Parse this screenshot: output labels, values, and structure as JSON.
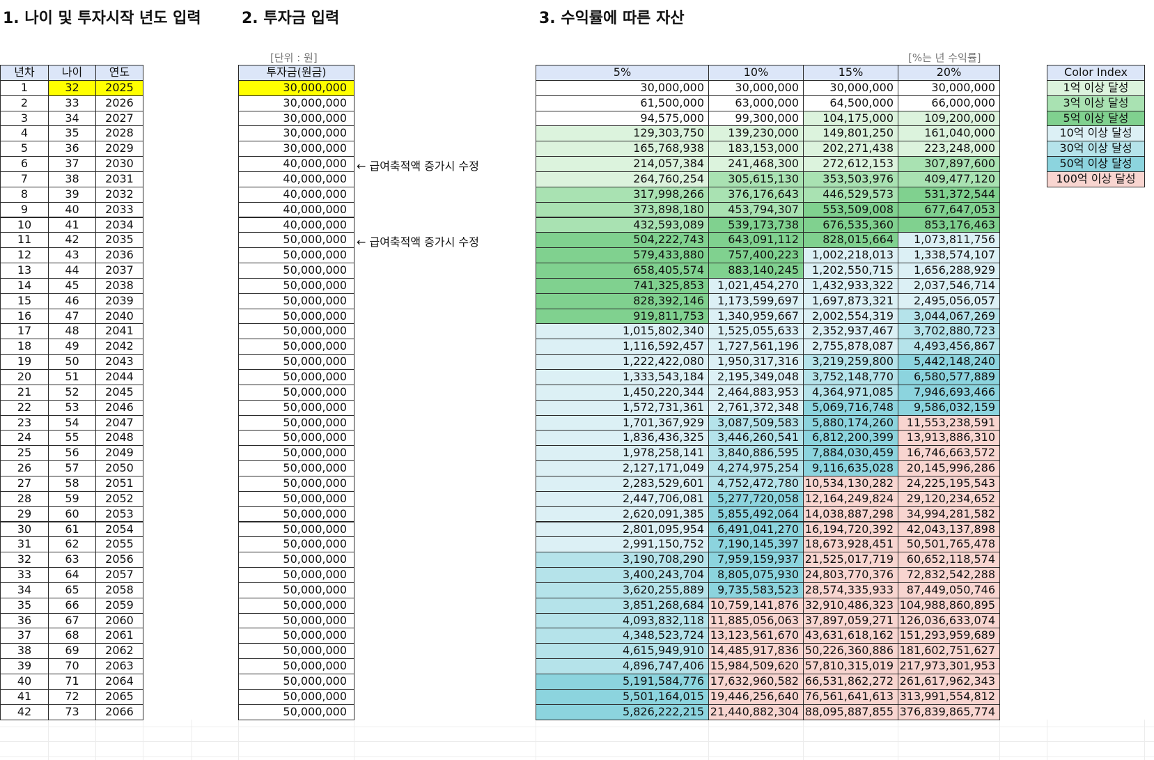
{
  "sections": {
    "s1": "1. 나이 및 투자시작 년도 입력",
    "s2": "2. 투자금 입력",
    "s3": "3. 수익률에 따른 자산"
  },
  "unit_note": "[단위 : 원]",
  "rate_note": "[%는 년 수익률]",
  "input_table": {
    "headers": [
      "년차",
      "나이",
      "연도"
    ],
    "rows": [
      [
        1,
        32,
        2025
      ],
      [
        2,
        33,
        2026
      ],
      [
        3,
        34,
        2027
      ],
      [
        4,
        35,
        2028
      ],
      [
        5,
        36,
        2029
      ],
      [
        6,
        37,
        2030
      ],
      [
        7,
        38,
        2031
      ],
      [
        8,
        39,
        2032
      ],
      [
        9,
        40,
        2033
      ],
      [
        10,
        41,
        2034
      ],
      [
        11,
        42,
        2035
      ],
      [
        12,
        43,
        2036
      ],
      [
        13,
        44,
        2037
      ],
      [
        14,
        45,
        2038
      ],
      [
        15,
        46,
        2039
      ],
      [
        16,
        47,
        2040
      ],
      [
        17,
        48,
        2041
      ],
      [
        18,
        49,
        2042
      ],
      [
        19,
        50,
        2043
      ],
      [
        20,
        51,
        2044
      ],
      [
        21,
        52,
        2045
      ],
      [
        22,
        53,
        2046
      ],
      [
        23,
        54,
        2047
      ],
      [
        24,
        55,
        2048
      ],
      [
        25,
        56,
        2049
      ],
      [
        26,
        57,
        2050
      ],
      [
        27,
        58,
        2051
      ],
      [
        28,
        59,
        2052
      ],
      [
        29,
        60,
        2053
      ],
      [
        30,
        61,
        2054
      ],
      [
        31,
        62,
        2055
      ],
      [
        32,
        63,
        2056
      ],
      [
        33,
        64,
        2057
      ],
      [
        34,
        65,
        2058
      ],
      [
        35,
        66,
        2059
      ],
      [
        36,
        67,
        2060
      ],
      [
        37,
        68,
        2061
      ],
      [
        38,
        69,
        2062
      ],
      [
        39,
        70,
        2063
      ],
      [
        40,
        71,
        2064
      ],
      [
        41,
        72,
        2065
      ],
      [
        42,
        73,
        2066
      ]
    ]
  },
  "investment_table": {
    "header": "투자금(원금)",
    "rows": [
      {
        "amount": "30,000,000"
      },
      {
        "amount": "30,000,000"
      },
      {
        "amount": "30,000,000"
      },
      {
        "amount": "30,000,000"
      },
      {
        "amount": "30,000,000"
      },
      {
        "amount": "40,000,000",
        "note": "← 급여축적액 증가시 수정"
      },
      {
        "amount": "40,000,000"
      },
      {
        "amount": "40,000,000"
      },
      {
        "amount": "40,000,000"
      },
      {
        "amount": "40,000,000"
      },
      {
        "amount": "50,000,000",
        "note": "← 급여축적액 증가시 수정"
      },
      {
        "amount": "50,000,000"
      },
      {
        "amount": "50,000,000"
      },
      {
        "amount": "50,000,000"
      },
      {
        "amount": "50,000,000"
      },
      {
        "amount": "50,000,000"
      },
      {
        "amount": "50,000,000"
      },
      {
        "amount": "50,000,000"
      },
      {
        "amount": "50,000,000"
      },
      {
        "amount": "50,000,000"
      },
      {
        "amount": "50,000,000"
      },
      {
        "amount": "50,000,000"
      },
      {
        "amount": "50,000,000"
      },
      {
        "amount": "50,000,000"
      },
      {
        "amount": "50,000,000"
      },
      {
        "amount": "50,000,000"
      },
      {
        "amount": "50,000,000"
      },
      {
        "amount": "50,000,000"
      },
      {
        "amount": "50,000,000"
      },
      {
        "amount": "50,000,000"
      },
      {
        "amount": "50,000,000"
      },
      {
        "amount": "50,000,000"
      },
      {
        "amount": "50,000,000"
      },
      {
        "amount": "50,000,000"
      },
      {
        "amount": "50,000,000"
      },
      {
        "amount": "50,000,000"
      },
      {
        "amount": "50,000,000"
      },
      {
        "amount": "50,000,000"
      },
      {
        "amount": "50,000,000"
      },
      {
        "amount": "50,000,000"
      },
      {
        "amount": "50,000,000"
      },
      {
        "amount": "50,000,000"
      }
    ]
  },
  "asset_table": {
    "headers": [
      "5%",
      "10%",
      "15%",
      "20%"
    ],
    "rows": [
      [
        "30,000,000",
        "30,000,000",
        "30,000,000",
        "30,000,000"
      ],
      [
        "61,500,000",
        "63,000,000",
        "64,500,000",
        "66,000,000"
      ],
      [
        "94,575,000",
        "99,300,000",
        "104,175,000",
        "109,200,000"
      ],
      [
        "129,303,750",
        "139,230,000",
        "149,801,250",
        "161,040,000"
      ],
      [
        "165,768,938",
        "183,153,000",
        "202,271,438",
        "223,248,000"
      ],
      [
        "214,057,384",
        "241,468,300",
        "272,612,153",
        "307,897,600"
      ],
      [
        "264,760,254",
        "305,615,130",
        "353,503,976",
        "409,477,120"
      ],
      [
        "317,998,266",
        "376,176,643",
        "446,529,573",
        "531,372,544"
      ],
      [
        "373,898,180",
        "453,794,307",
        "553,509,008",
        "677,647,053"
      ],
      [
        "432,593,089",
        "539,173,738",
        "676,535,360",
        "853,176,463"
      ],
      [
        "504,222,743",
        "643,091,112",
        "828,015,664",
        "1,073,811,756"
      ],
      [
        "579,433,880",
        "757,400,223",
        "1,002,218,013",
        "1,338,574,107"
      ],
      [
        "658,405,574",
        "883,140,245",
        "1,202,550,715",
        "1,656,288,929"
      ],
      [
        "741,325,853",
        "1,021,454,270",
        "1,432,933,322",
        "2,037,546,714"
      ],
      [
        "828,392,146",
        "1,173,599,697",
        "1,697,873,321",
        "2,495,056,057"
      ],
      [
        "919,811,753",
        "1,340,959,667",
        "2,002,554,319",
        "3,044,067,269"
      ],
      [
        "1,015,802,340",
        "1,525,055,633",
        "2,352,937,467",
        "3,702,880,723"
      ],
      [
        "1,116,592,457",
        "1,727,561,196",
        "2,755,878,087",
        "4,493,456,867"
      ],
      [
        "1,222,422,080",
        "1,950,317,316",
        "3,219,259,800",
        "5,442,148,240"
      ],
      [
        "1,333,543,184",
        "2,195,349,048",
        "3,752,148,770",
        "6,580,577,889"
      ],
      [
        "1,450,220,344",
        "2,464,883,953",
        "4,364,971,085",
        "7,946,693,466"
      ],
      [
        "1,572,731,361",
        "2,761,372,348",
        "5,069,716,748",
        "9,586,032,159"
      ],
      [
        "1,701,367,929",
        "3,087,509,583",
        "5,880,174,260",
        "11,553,238,591"
      ],
      [
        "1,836,436,325",
        "3,446,260,541",
        "6,812,200,399",
        "13,913,886,310"
      ],
      [
        "1,978,258,141",
        "3,840,886,595",
        "7,884,030,459",
        "16,746,663,572"
      ],
      [
        "2,127,171,049",
        "4,274,975,254",
        "9,116,635,028",
        "20,145,996,286"
      ],
      [
        "2,283,529,601",
        "4,752,472,780",
        "10,534,130,282",
        "24,225,195,543"
      ],
      [
        "2,447,706,081",
        "5,277,720,058",
        "12,164,249,824",
        "29,120,234,652"
      ],
      [
        "2,620,091,385",
        "5,855,492,064",
        "14,038,887,298",
        "34,994,281,582"
      ],
      [
        "2,801,095,954",
        "6,491,041,270",
        "16,194,720,392",
        "42,043,137,898"
      ],
      [
        "2,991,150,752",
        "7,190,145,397",
        "18,673,928,451",
        "50,501,765,478"
      ],
      [
        "3,190,708,290",
        "7,959,159,937",
        "21,525,017,719",
        "60,652,118,574"
      ],
      [
        "3,400,243,704",
        "8,805,075,930",
        "24,803,770,376",
        "72,832,542,288"
      ],
      [
        "3,620,255,889",
        "9,735,583,523",
        "28,574,335,933",
        "87,449,050,746"
      ],
      [
        "3,851,268,684",
        "10,759,141,876",
        "32,910,486,323",
        "104,988,860,895"
      ],
      [
        "4,093,832,118",
        "11,885,056,063",
        "37,897,059,271",
        "126,036,633,074"
      ],
      [
        "4,348,523,724",
        "13,123,561,670",
        "43,631,618,162",
        "151,293,959,689"
      ],
      [
        "4,615,949,910",
        "14,485,917,836",
        "50,226,360,886",
        "181,602,751,627"
      ],
      [
        "4,896,747,406",
        "15,984,509,620",
        "57,810,315,019",
        "217,973,301,953"
      ],
      [
        "5,191,584,776",
        "17,632,960,582",
        "66,531,862,272",
        "261,617,962,343"
      ],
      [
        "5,501,164,015",
        "19,446,256,640",
        "76,561,641,613",
        "313,991,554,812"
      ],
      [
        "5,826,222,215",
        "21,440,882,304",
        "88,095,887,855",
        "376,839,865,774"
      ]
    ]
  },
  "color_index": {
    "title": "Color Index",
    "items": [
      {
        "label": "1억 이상 달성",
        "color": "#dcf3dd",
        "min": 100000000
      },
      {
        "label": "3억 이상 달성",
        "color": "#a9e2b2",
        "min": 300000000
      },
      {
        "label": "5억 이상 달성",
        "color": "#80d18f",
        "min": 500000000
      },
      {
        "label": "10억 이상 달성",
        "color": "#dcf0f5",
        "min": 1000000000
      },
      {
        "label": "30억 이상 달성",
        "color": "#b5e3ea",
        "min": 3000000000
      },
      {
        "label": "50억 이상 달성",
        "color": "#8cd4de",
        "min": 5000000000
      },
      {
        "label": "100억 이상 달성",
        "color": "#f8d5d0",
        "min": 10000000000
      }
    ]
  }
}
